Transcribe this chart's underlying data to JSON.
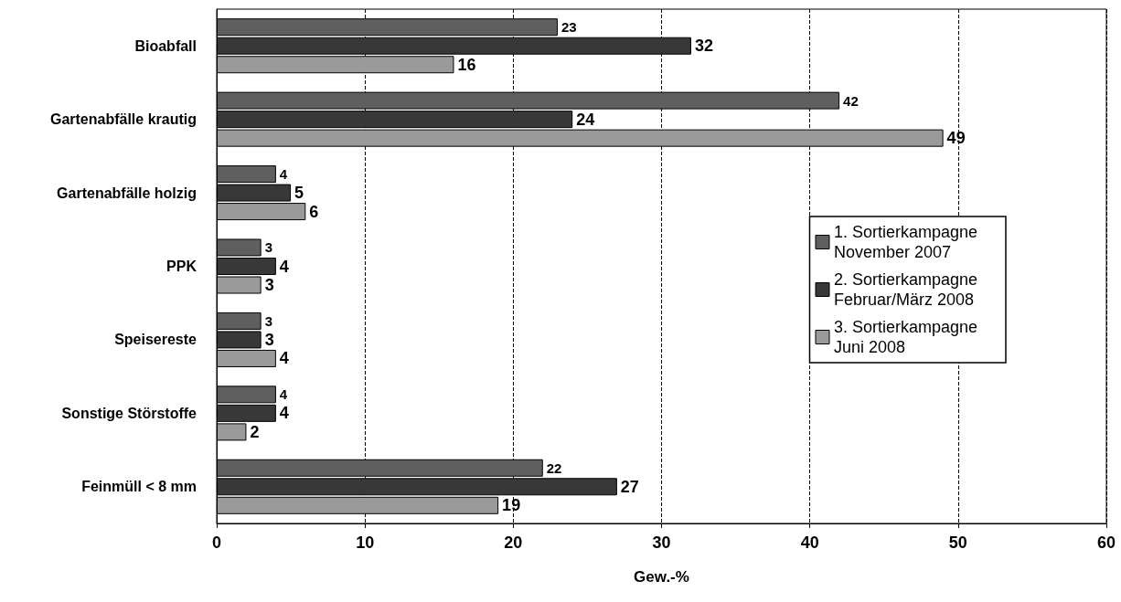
{
  "chart_data": {
    "type": "bar",
    "orientation": "horizontal",
    "xlabel": "Gew.-%",
    "categories": [
      "Bioabfall",
      "Gartenabfälle krautig",
      "Gartenabfälle holzig",
      "PPK",
      "Speisereste",
      "Sonstige Störstoffe",
      "Feinmüll < 8 mm"
    ],
    "series": [
      {
        "name": "1. Sortierkampagne November 2007",
        "color": "#5f5f5f",
        "values": [
          23,
          42,
          4,
          3,
          3,
          4,
          22
        ]
      },
      {
        "name": "2. Sortierkampagne Februar/März 2008",
        "color": "#383838",
        "values": [
          32,
          24,
          5,
          4,
          3,
          4,
          27
        ]
      },
      {
        "name": "3. Sortierkampagne Juni 2008",
        "color": "#9a9a9a",
        "values": [
          16,
          49,
          6,
          3,
          4,
          2,
          19
        ]
      }
    ],
    "xlim": [
      0,
      60
    ],
    "xticks": [
      0,
      10,
      20,
      30,
      40,
      50,
      60
    ],
    "grid": "x",
    "legend": "right",
    "data_labels": true
  }
}
